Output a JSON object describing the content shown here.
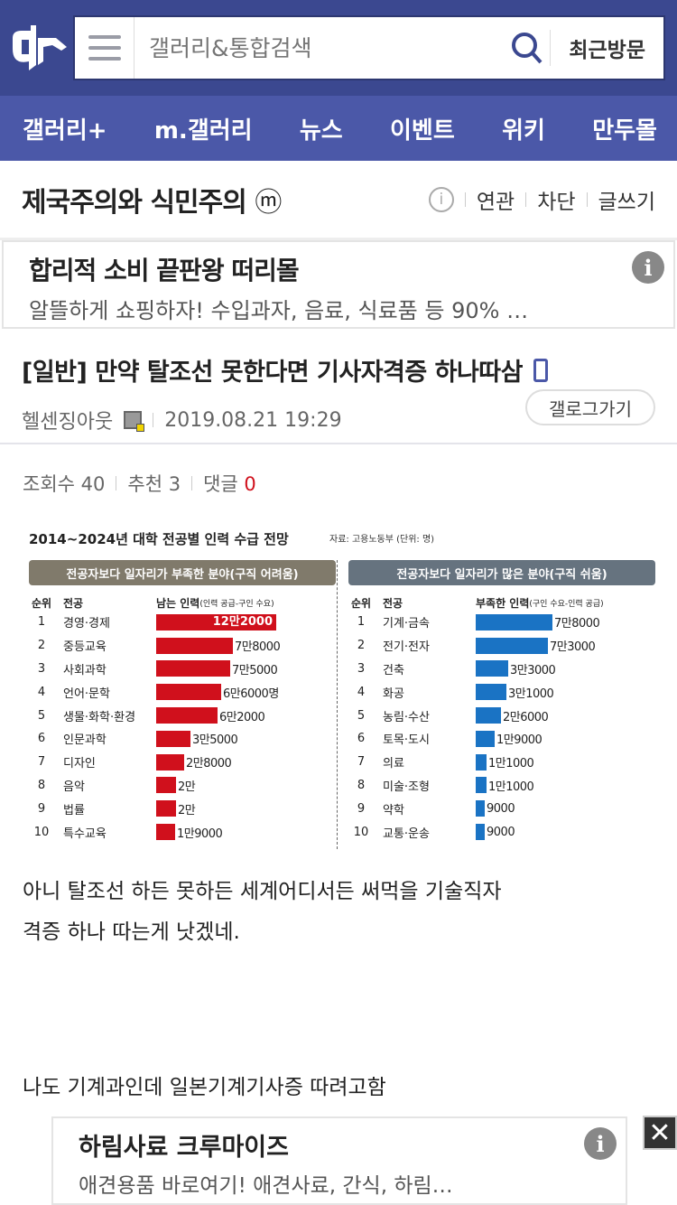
{
  "header": {
    "logo": "dc",
    "search_placeholder": "갤러리&통합검색",
    "recent_label": "최근방문"
  },
  "nav": [
    "갤러리+",
    "m.갤러리",
    "뉴스",
    "이벤트",
    "위키",
    "만두몰"
  ],
  "gallery": {
    "title": "제국주의와 식민주의",
    "badge": "ⓜ",
    "actions": [
      "연관",
      "차단",
      "글쓰기"
    ]
  },
  "ad_top": {
    "title": "합리적 소비 끝판왕 떠리몰",
    "desc": "알뜰하게 쇼핑하자! 수입과자, 음료, 식료품 등 90% …"
  },
  "post": {
    "title": "[일반] 만약 탈조선 못한다면 기사자격증 하나따삼",
    "author": "헬센징아웃",
    "date": "2019.08.21 19:29",
    "gallog_label": "갤로그가기",
    "stats": {
      "views_label": "조회수",
      "views": "40",
      "likes_label": "추천",
      "likes": "3",
      "comments_label": "댓글",
      "comments": "0"
    },
    "body": [
      "아니 탈조선 하든 못하든 세계어디서든 써먹을 기술직자",
      "격증 하나 따는게 낫겠네.",
      "나도 기계과인데 일본기계기사증 따려고함"
    ]
  },
  "chart_data": {
    "type": "bar",
    "title": "2014~2024년 대학 전공별 인력 수급 전망",
    "source": "자료: 고용노동부 (단위: 명)",
    "panels": [
      {
        "header": "전공자보다 일자리가 부족한 분야(구직 어려움)",
        "col_rank": "순위",
        "col_major": "전공",
        "col_value": "남는 인력",
        "col_note": "(인력 공급-구인 수요)",
        "color": "#d0101c",
        "header_color": "#807a6b",
        "rows": [
          {
            "rank": "1",
            "major": "경영·경제",
            "value": 122000,
            "label": "12만2000"
          },
          {
            "rank": "2",
            "major": "중등교육",
            "value": 78000,
            "label": "7만8000"
          },
          {
            "rank": "3",
            "major": "사회과학",
            "value": 75000,
            "label": "7만5000"
          },
          {
            "rank": "4",
            "major": "언어·문학",
            "value": 66000,
            "label": "6만6000명"
          },
          {
            "rank": "5",
            "major": "생물·화학·환경",
            "value": 62000,
            "label": "6만2000"
          },
          {
            "rank": "6",
            "major": "인문과학",
            "value": 35000,
            "label": "3만5000"
          },
          {
            "rank": "7",
            "major": "디자인",
            "value": 28000,
            "label": "2만8000"
          },
          {
            "rank": "8",
            "major": "음악",
            "value": 20000,
            "label": "2만"
          },
          {
            "rank": "9",
            "major": "법률",
            "value": 20000,
            "label": "2만"
          },
          {
            "rank": "10",
            "major": "특수교육",
            "value": 19000,
            "label": "1만9000"
          }
        ]
      },
      {
        "header": "전공자보다 일자리가 많은 분야(구직 쉬움)",
        "col_rank": "순위",
        "col_major": "전공",
        "col_value": "부족한 인력",
        "col_note": "(구인 수요-인력 공급)",
        "color": "#1a73c4",
        "header_color": "#66737f",
        "rows": [
          {
            "rank": "1",
            "major": "기계·금속",
            "value": 78000,
            "label": "7만8000"
          },
          {
            "rank": "2",
            "major": "전기·전자",
            "value": 73000,
            "label": "7만3000"
          },
          {
            "rank": "3",
            "major": "건축",
            "value": 33000,
            "label": "3만3000"
          },
          {
            "rank": "4",
            "major": "화공",
            "value": 31000,
            "label": "3만1000"
          },
          {
            "rank": "5",
            "major": "농림·수산",
            "value": 26000,
            "label": "2만6000"
          },
          {
            "rank": "6",
            "major": "토목·도시",
            "value": 19000,
            "label": "1만9000"
          },
          {
            "rank": "7",
            "major": "의료",
            "value": 11000,
            "label": "1만1000"
          },
          {
            "rank": "8",
            "major": "미술·조형",
            "value": 11000,
            "label": "1만1000"
          },
          {
            "rank": "9",
            "major": "약학",
            "value": 9000,
            "label": "9000"
          },
          {
            "rank": "10",
            "major": "교통·운송",
            "value": 9000,
            "label": "9000"
          }
        ]
      }
    ]
  },
  "ad_bottom": {
    "title": "하림사료 크루마이즈",
    "desc": "애견용품 바로여기! 애견사료, 간식, 하림…"
  },
  "colors": {
    "header": "#3b4890",
    "nav": "#4b58a8",
    "comment_count": "#d0101c"
  }
}
